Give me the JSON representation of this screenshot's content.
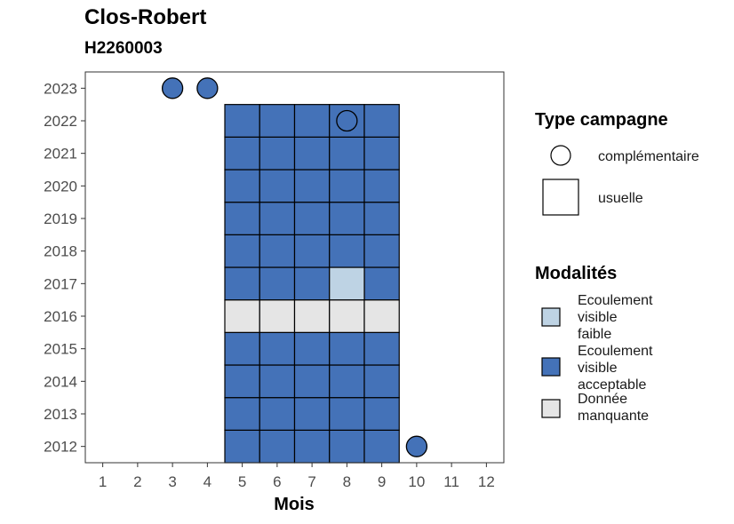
{
  "title": "Clos-Robert",
  "subtitle": "H2260003",
  "chart_data": {
    "type": "heatmap",
    "xlabel": "Mois",
    "ylabel": "",
    "x_ticks": [
      1,
      2,
      3,
      4,
      5,
      6,
      7,
      8,
      9,
      10,
      11,
      12
    ],
    "y_ticks": [
      2012,
      2013,
      2014,
      2015,
      2016,
      2017,
      2018,
      2019,
      2020,
      2021,
      2022,
      2023
    ],
    "xlim": [
      0.5,
      12.5
    ],
    "ylim": [
      2011.5,
      2023.5
    ],
    "colors": {
      "Ecoulement visible faible": "#bed3e4",
      "Ecoulement visible acceptable": "#4472b8",
      "Donnée manquante": "#e5e5e5"
    },
    "cells": [
      {
        "year": 2012,
        "months": [
          5,
          6,
          7,
          8,
          9
        ],
        "modalite": "Ecoulement visible acceptable",
        "campagne": "usuelle"
      },
      {
        "year": 2013,
        "months": [
          5,
          6,
          7,
          8,
          9
        ],
        "modalite": "Ecoulement visible acceptable",
        "campagne": "usuelle"
      },
      {
        "year": 2014,
        "months": [
          5,
          6,
          7,
          8,
          9
        ],
        "modalite": "Ecoulement visible acceptable",
        "campagne": "usuelle"
      },
      {
        "year": 2015,
        "months": [
          5,
          6,
          7,
          8,
          9
        ],
        "modalite": "Ecoulement visible acceptable",
        "campagne": "usuelle"
      },
      {
        "year": 2016,
        "months": [
          5,
          6,
          7,
          8,
          9
        ],
        "modalite": "Donnée manquante",
        "campagne": "usuelle"
      },
      {
        "year": 2017,
        "months": [
          5,
          6,
          7,
          9
        ],
        "modalite": "Ecoulement visible acceptable",
        "campagne": "usuelle"
      },
      {
        "year": 2017,
        "months": [
          8
        ],
        "modalite": "Ecoulement visible faible",
        "campagne": "usuelle"
      },
      {
        "year": 2018,
        "months": [
          5,
          6,
          7,
          8,
          9
        ],
        "modalite": "Ecoulement visible acceptable",
        "campagne": "usuelle"
      },
      {
        "year": 2019,
        "months": [
          5,
          6,
          7,
          8,
          9
        ],
        "modalite": "Ecoulement visible acceptable",
        "campagne": "usuelle"
      },
      {
        "year": 2020,
        "months": [
          5,
          6,
          7,
          8,
          9
        ],
        "modalite": "Ecoulement visible acceptable",
        "campagne": "usuelle"
      },
      {
        "year": 2021,
        "months": [
          5,
          6,
          7,
          8,
          9
        ],
        "modalite": "Ecoulement visible acceptable",
        "campagne": "usuelle"
      },
      {
        "year": 2022,
        "months": [
          5,
          6,
          7,
          8,
          9
        ],
        "modalite": "Ecoulement visible acceptable",
        "campagne": "usuelle"
      }
    ],
    "points": [
      {
        "year": 2023,
        "month": 3,
        "modalite": "Ecoulement visible acceptable",
        "campagne": "complémentaire"
      },
      {
        "year": 2023,
        "month": 4,
        "modalite": "Ecoulement visible acceptable",
        "campagne": "complémentaire"
      },
      {
        "year": 2022,
        "month": 8,
        "modalite": "Ecoulement visible acceptable",
        "campagne": "complémentaire"
      },
      {
        "year": 2012,
        "month": 10,
        "modalite": "Ecoulement visible acceptable",
        "campagne": "complémentaire"
      }
    ],
    "legend_shape": {
      "title": "Type campagne",
      "items": [
        {
          "label": "complémentaire",
          "shape": "circle"
        },
        {
          "label": "usuelle",
          "shape": "square"
        }
      ]
    },
    "legend_fill": {
      "title": "Modalités",
      "items": [
        {
          "lines": [
            "Ecoulement",
            "visible",
            "faible"
          ],
          "color": "#bed3e4"
        },
        {
          "lines": [
            "Ecoulement",
            "visible",
            "acceptable"
          ],
          "color": "#4472b8"
        },
        {
          "lines": [
            "Donnée",
            "manquante"
          ],
          "color": "#e5e5e5"
        }
      ]
    },
    "legend_position": "right",
    "grid": false
  }
}
